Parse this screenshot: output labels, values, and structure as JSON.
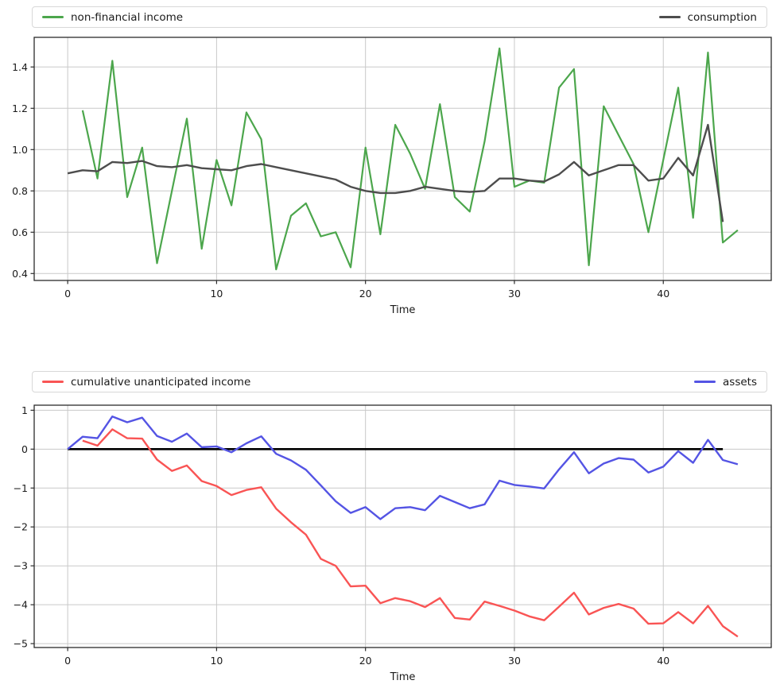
{
  "figure": {
    "background": "#ffffff",
    "grid_color": "#c9c9c9",
    "spine_color": "#2b2b2b",
    "tick_text_color": "#1a1a1a"
  },
  "chart_data": [
    {
      "type": "line",
      "title": "",
      "xlabel": "Time",
      "ylabel": "",
      "grid": true,
      "legend_position": "expanded above plot, left and right",
      "xlim": [
        -2.25,
        47.25
      ],
      "ylim": [
        0.3665,
        1.5435
      ],
      "x_ticks": [
        {
          "label": "0",
          "value": 0
        },
        {
          "label": "10",
          "value": 10
        },
        {
          "label": "20",
          "value": 20
        },
        {
          "label": "30",
          "value": 30
        },
        {
          "label": "40",
          "value": 40
        }
      ],
      "y_ticks": [
        {
          "label": "1.4",
          "value": 1.4
        },
        {
          "label": "1.2",
          "value": 1.2
        },
        {
          "label": "1.0",
          "value": 1.0
        },
        {
          "label": "0.8",
          "value": 0.8
        },
        {
          "label": "0.6",
          "value": 0.6
        },
        {
          "label": "0.4",
          "value": 0.4
        }
      ],
      "series": [
        {
          "name": "non-financial income",
          "color": "#4CA64C",
          "width": 2.2,
          "in_legend": true,
          "x_start": 1,
          "values": [
            1.19,
            0.86,
            1.43,
            0.77,
            1.01,
            0.45,
            0.8,
            1.15,
            0.52,
            0.95,
            0.73,
            1.18,
            1.05,
            0.42,
            0.68,
            0.74,
            0.58,
            0.6,
            0.43,
            1.01,
            0.59,
            1.12,
            0.98,
            0.81,
            1.22,
            0.77,
            0.7,
            1.04,
            1.49,
            0.82,
            0.85,
            0.84,
            1.3,
            1.39,
            0.44,
            1.21,
            1.07,
            0.93,
            0.6,
            0.95,
            1.3,
            0.67,
            1.47,
            0.55,
            0.61
          ]
        },
        {
          "name": "consumption",
          "color": "#4D4D4D",
          "width": 2.4,
          "in_legend": true,
          "x_start": 0,
          "values": [
            0.885,
            0.9,
            0.895,
            0.94,
            0.935,
            0.945,
            0.92,
            0.915,
            0.925,
            0.91,
            0.905,
            0.9,
            0.92,
            0.93,
            0.915,
            0.9,
            0.885,
            0.87,
            0.855,
            0.82,
            0.8,
            0.79,
            0.79,
            0.8,
            0.82,
            0.81,
            0.8,
            0.795,
            0.8,
            0.86,
            0.86,
            0.85,
            0.845,
            0.88,
            0.94,
            0.875,
            0.9,
            0.925,
            0.925,
            0.85,
            0.86,
            0.96,
            0.875,
            1.12,
            0.65
          ]
        }
      ]
    },
    {
      "type": "line",
      "title": "",
      "xlabel": "Time",
      "ylabel": "",
      "grid": true,
      "legend_position": "expanded above plot, left and right",
      "xlim": [
        -2.25,
        47.25
      ],
      "ylim": [
        -5.1,
        1.13
      ],
      "x_ticks": [
        {
          "label": "0",
          "value": 0
        },
        {
          "label": "10",
          "value": 10
        },
        {
          "label": "20",
          "value": 20
        },
        {
          "label": "30",
          "value": 30
        },
        {
          "label": "40",
          "value": 40
        }
      ],
      "y_ticks": [
        {
          "label": "1",
          "value": 1
        },
        {
          "label": "0",
          "value": 0
        },
        {
          "label": "−1",
          "value": -1
        },
        {
          "label": "−2",
          "value": -2
        },
        {
          "label": "−3",
          "value": -3
        },
        {
          "label": "−4",
          "value": -4
        },
        {
          "label": "−5",
          "value": -5
        }
      ],
      "series": [
        {
          "name": "cumulative unanticipated income",
          "color": "#F95454",
          "width": 2.4,
          "in_legend": true,
          "x_start": 1,
          "values": [
            0.22,
            0.09,
            0.51,
            0.28,
            0.27,
            -0.27,
            -0.56,
            -0.42,
            -0.82,
            -0.95,
            -1.18,
            -1.05,
            -0.98,
            -1.53,
            -1.88,
            -2.2,
            -2.82,
            -3.0,
            -3.53,
            -3.51,
            -3.96,
            -3.83,
            -3.91,
            -4.06,
            -3.83,
            -4.34,
            -4.38,
            -3.92,
            -4.03,
            -4.15,
            -4.3,
            -4.4,
            -4.05,
            -3.69,
            -4.25,
            -4.08,
            -3.98,
            -4.1,
            -4.49,
            -4.48,
            -4.19,
            -4.48,
            -4.03,
            -4.55,
            -4.82
          ]
        },
        {
          "name": "assets",
          "color": "#5454E4",
          "width": 2.4,
          "in_legend": true,
          "x_start": 0,
          "values": [
            0.0,
            0.32,
            0.28,
            0.84,
            0.69,
            0.81,
            0.34,
            0.19,
            0.4,
            0.05,
            0.07,
            -0.08,
            0.15,
            0.33,
            -0.12,
            -0.29,
            -0.53,
            -0.93,
            -1.34,
            -1.64,
            -1.49,
            -1.8,
            -1.52,
            -1.49,
            -1.57,
            -1.2,
            -1.36,
            -1.52,
            -1.42,
            -0.81,
            -0.92,
            -0.96,
            -1.01,
            -0.52,
            -0.08,
            -0.62,
            -0.37,
            -0.23,
            -0.27,
            -0.6,
            -0.45,
            -0.05,
            -0.35,
            0.24,
            -0.28,
            -0.39
          ]
        },
        {
          "name": "zero-baseline",
          "color": "#000000",
          "width": 2.6,
          "in_legend": false,
          "x_start": 0,
          "values": [
            0,
            0,
            0,
            0,
            0,
            0,
            0,
            0,
            0,
            0,
            0,
            0,
            0,
            0,
            0,
            0,
            0,
            0,
            0,
            0,
            0,
            0,
            0,
            0,
            0,
            0,
            0,
            0,
            0,
            0,
            0,
            0,
            0,
            0,
            0,
            0,
            0,
            0,
            0,
            0,
            0,
            0,
            0,
            0,
            0
          ]
        }
      ]
    }
  ]
}
